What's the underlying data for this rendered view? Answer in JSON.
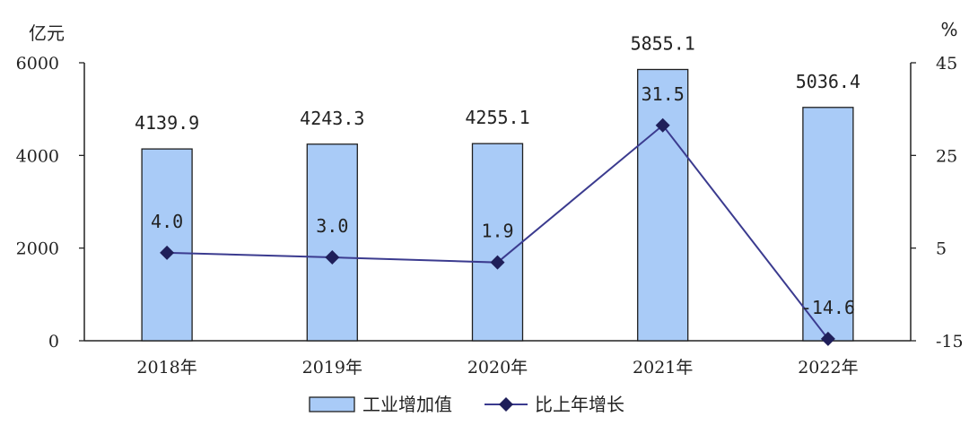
{
  "chart_data": {
    "type": "bar",
    "categories": [
      "2018年",
      "2019年",
      "2020年",
      "2021年",
      "2022年"
    ],
    "series": [
      {
        "name": "工业增加值",
        "type": "bar",
        "axis": "left",
        "values": [
          4139.9,
          4243.3,
          4255.1,
          5855.1,
          5036.4
        ]
      },
      {
        "name": "比上年增长",
        "type": "line",
        "axis": "right",
        "values": [
          4.0,
          3.0,
          1.9,
          31.5,
          -14.6
        ]
      }
    ],
    "bar_labels": [
      "4139.9",
      "4243.3",
      "4255.1",
      "5855.1",
      "5036.4"
    ],
    "line_labels": [
      "4.0",
      "3.0",
      "1.9",
      "31.5",
      "-14.6"
    ],
    "y_left": {
      "unit": "亿元",
      "ylim": [
        0,
        6000
      ],
      "ticks": [
        "0",
        "2000",
        "4000",
        "6000"
      ]
    },
    "y_right": {
      "unit": "%",
      "ylim": [
        -15,
        45
      ],
      "ticks": [
        "-15",
        "5",
        "25",
        "45"
      ]
    },
    "legend": {
      "position": "bottom-center",
      "items": [
        "工业增加值",
        "比上年增长"
      ]
    },
    "grid": false,
    "colors": {
      "bar_fill": "#a9cbf7",
      "bar_stroke": "#1f1f1f",
      "line": "#3b3b8f",
      "marker": "#1f1f5a"
    }
  }
}
